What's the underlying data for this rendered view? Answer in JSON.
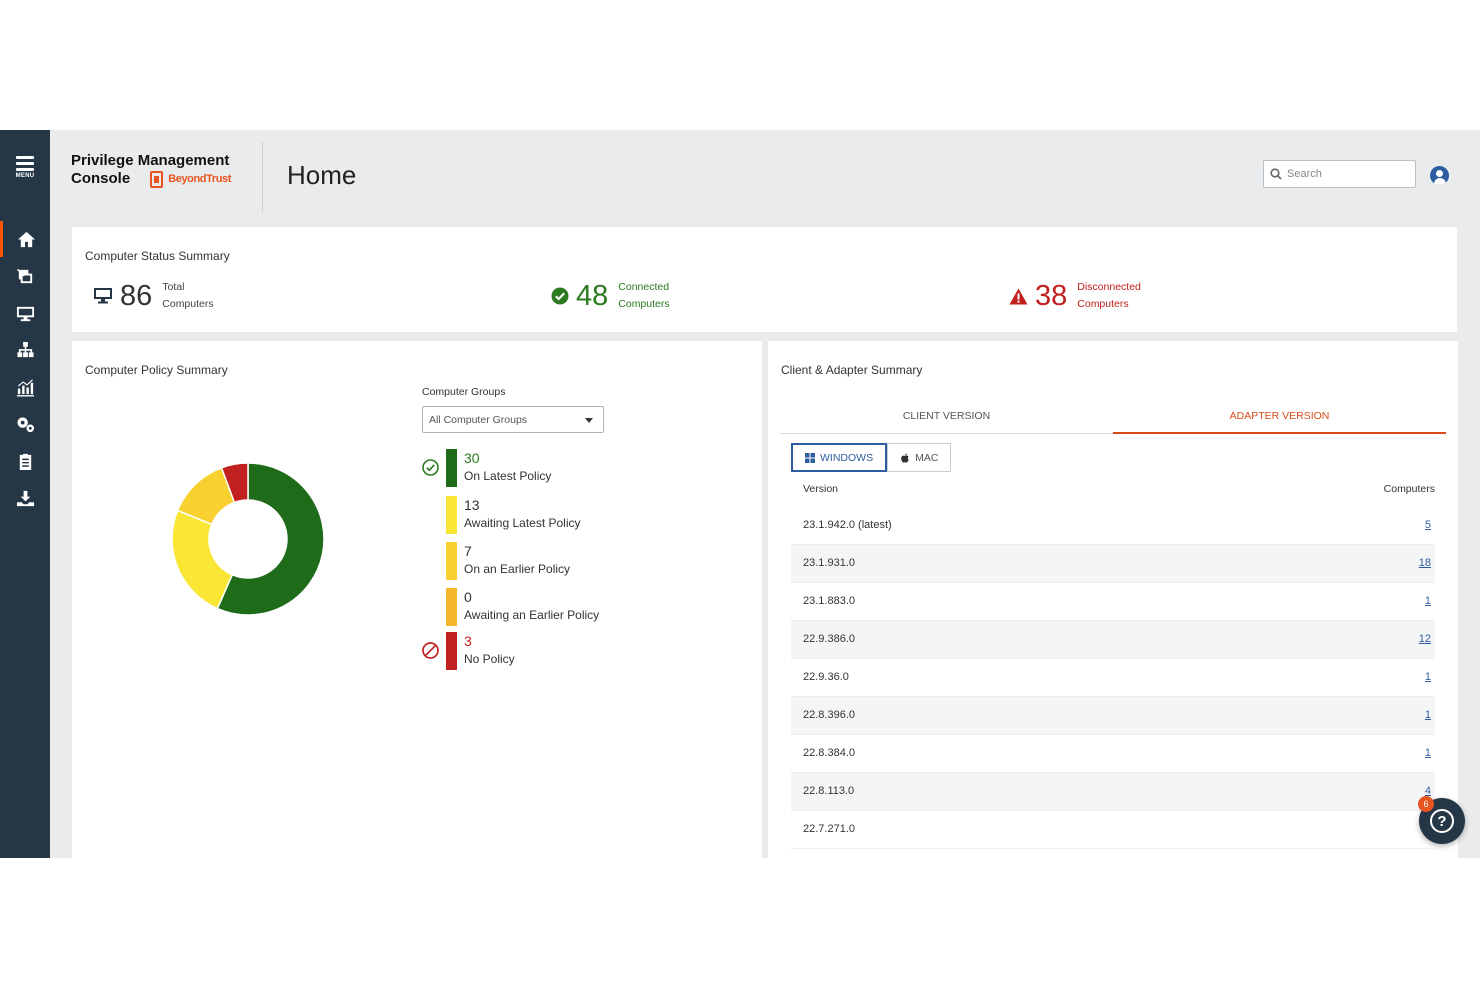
{
  "header": {
    "brand_line1": "Privilege Management",
    "brand_line2": "Console",
    "brand_logo": "BeyondTrust",
    "page_title": "Home",
    "search_placeholder": "Search"
  },
  "sidebar": {
    "menu_label": "MENU",
    "items": [
      {
        "icon": "home-icon",
        "active": true
      },
      {
        "icon": "policy-editor-icon",
        "active": false
      },
      {
        "icon": "computers-icon",
        "active": false
      },
      {
        "icon": "groups-hierarchy-icon",
        "active": false
      },
      {
        "icon": "analytics-icon",
        "active": false
      },
      {
        "icon": "configuration-icon",
        "active": false
      },
      {
        "icon": "clipboard-icon",
        "active": false
      },
      {
        "icon": "downloads-icon",
        "active": false
      }
    ]
  },
  "status_summary": {
    "title": "Computer Status Summary",
    "total": {
      "value": "86",
      "label_line1": "Total",
      "label_line2": "Computers"
    },
    "connected": {
      "value": "48",
      "label_line1": "Connected",
      "label_line2": "Computers"
    },
    "disconnected": {
      "value": "38",
      "label_line1": "Disconnected",
      "label_line2": "Computers"
    }
  },
  "policy_summary": {
    "title": "Computer Policy Summary",
    "groups_label": "Computer Groups",
    "groups_selected": "All Computer Groups",
    "legend": [
      {
        "value": "30",
        "label": "On Latest Policy",
        "color": "#1e6b1a",
        "value_color": "#2b7a1f",
        "status_icon": "check-circle-icon"
      },
      {
        "value": "13",
        "label": "Awaiting Latest Policy",
        "color": "#fae635",
        "value_color": "#333333",
        "status_icon": ""
      },
      {
        "value": "7",
        "label": "On an Earlier Policy",
        "color": "#f8d030",
        "value_color": "#333333",
        "status_icon": ""
      },
      {
        "value": "0",
        "label": "Awaiting an Earlier Policy",
        "color": "#f6b82a",
        "value_color": "#333333",
        "status_icon": ""
      },
      {
        "value": "3",
        "label": "No Policy",
        "color": "#c2201f",
        "value_color": "#c2201f",
        "status_icon": "prohibited-icon"
      }
    ]
  },
  "chart_data": {
    "type": "pie",
    "donut": true,
    "categories": [
      "On Latest Policy",
      "Awaiting Latest Policy",
      "On an Earlier Policy",
      "Awaiting an Earlier Policy",
      "No Policy"
    ],
    "values": [
      30,
      13,
      7,
      0,
      3
    ],
    "colors": [
      "#1e6b1a",
      "#fae635",
      "#f8d030",
      "#f6b82a",
      "#c2201f"
    ]
  },
  "client_summary": {
    "title": "Client & Adapter Summary",
    "tabs": [
      {
        "label": "CLIENT VERSION",
        "active": false
      },
      {
        "label": "ADAPTER VERSION",
        "active": true
      }
    ],
    "os_buttons": [
      {
        "label": "WINDOWS",
        "active": true
      },
      {
        "label": "MAC",
        "active": false
      }
    ],
    "col_version": "Version",
    "col_computers": "Computers",
    "rows": [
      {
        "version": "23.1.942.0 (latest)",
        "computers": "5"
      },
      {
        "version": "23.1.931.0",
        "computers": "18"
      },
      {
        "version": "23.1.883.0",
        "computers": "1"
      },
      {
        "version": "22.9.386.0",
        "computers": "12"
      },
      {
        "version": "22.9.36.0",
        "computers": "1"
      },
      {
        "version": "22.8.396.0",
        "computers": "1"
      },
      {
        "version": "22.8.384.0",
        "computers": "1"
      },
      {
        "version": "22.8.113.0",
        "computers": "4"
      },
      {
        "version": "22.7.271.0",
        "computers": ""
      }
    ]
  },
  "help": {
    "badge_count": "6",
    "glyph": "?"
  },
  "theme": {
    "accent": "#d94a1a",
    "sidebar": "#253746",
    "link": "#2e5d9f"
  }
}
